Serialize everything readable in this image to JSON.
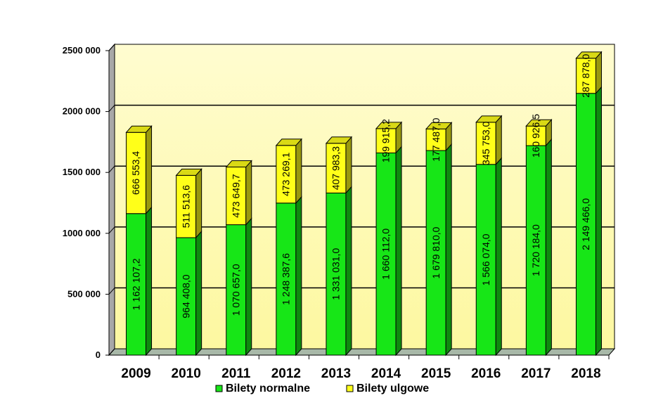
{
  "chart_data": {
    "type": "bar",
    "stacked": true,
    "three_d": true,
    "title": "",
    "xlabel": "",
    "ylabel": "",
    "categories": [
      "2009",
      "2010",
      "2011",
      "2012",
      "2013",
      "2014",
      "2015",
      "2016",
      "2017",
      "2018"
    ],
    "ylim": [
      0,
      2500000
    ],
    "yticks": [
      0,
      500000,
      1000000,
      1500000,
      2000000,
      2500000
    ],
    "ytick_labels": [
      "0",
      "500 000",
      "1000 000",
      "1500 000",
      "2000 000",
      "2500 000"
    ],
    "grid": true,
    "legend_position": "bottom",
    "series": [
      {
        "name": "Bilety normalne",
        "color": "#17e617",
        "values": [
          1162107.2,
          964408.0,
          1070657.0,
          1248387.6,
          1331031.0,
          1660112.0,
          1679810.0,
          1566074.0,
          1720184.0,
          2149466.0
        ],
        "labels": [
          "1 162 107,2",
          "964 408,0",
          "1 070 657,0",
          "1 248 387,6",
          "1 331 031,0",
          "1 660 112,0",
          "1 679 810,0",
          "1 566 074,0",
          "1 720 184,0",
          "2 149 466,0"
        ]
      },
      {
        "name": "Bilety ulgowe",
        "color": "#ffff19",
        "values": [
          666553.4,
          511513.6,
          473649.7,
          473269.1,
          407983.3,
          199915.2,
          177487.0,
          345753.0,
          160926.5,
          287878.0
        ],
        "labels": [
          "666 553,4",
          "511 513,6",
          "473 649,7",
          "473 269,1",
          "407 983,3",
          "199 915,2",
          "177 487,0",
          "345 753,0",
          "160 926,5",
          "287 878,0"
        ]
      }
    ],
    "colors": {
      "wall_top": "#fffcd0",
      "wall_bottom": "#fdf8a0",
      "side_wall": "#a8a8a8",
      "floor": "#a8b8a8",
      "grid_line": "#000000"
    }
  }
}
